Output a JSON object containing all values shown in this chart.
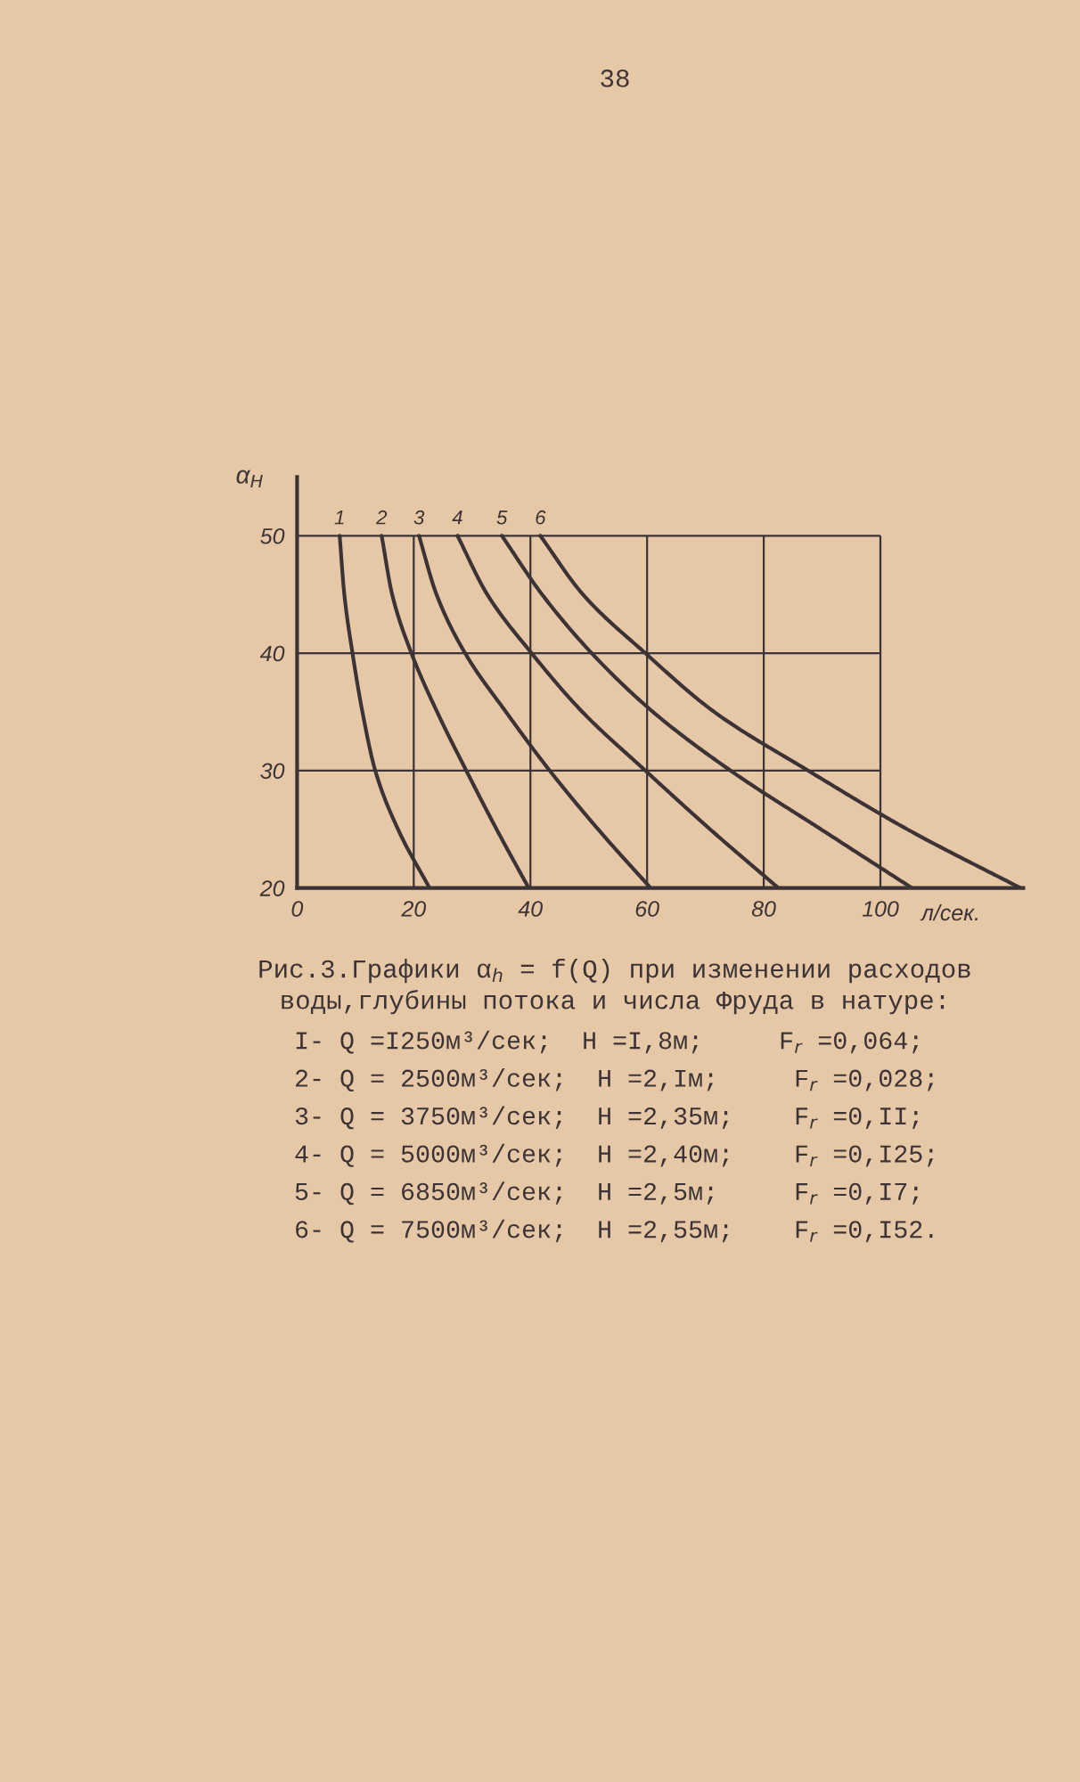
{
  "chart_data": {
    "type": "line",
    "title": "Рис.3.Графики α$_{h}$ = f(Q) при изменении расходов\nводы,глубины потока и числа Фруда в натуре:",
    "xlabel": "л/сек.",
    "ylabel": "α$_{H}$",
    "xlim": [
      0,
      124.5
    ],
    "ylim": [
      20,
      55
    ],
    "xticks": [
      0,
      20,
      40,
      60,
      80,
      100
    ],
    "yticks": [
      20,
      30,
      40,
      50
    ],
    "grid": true,
    "series": [
      {
        "name": "1",
        "color": "#3b3335",
        "x": [
          7.3,
          8.1,
          9.5,
          11.2,
          13.4,
          17.3,
          22.7
        ],
        "values": [
          50,
          45,
          40,
          35,
          30,
          25,
          20
        ]
      },
      {
        "name": "2",
        "color": "#3b3335",
        "x": [
          14.5,
          16.3,
          19.6,
          24.0,
          29.0,
          34.2,
          39.7
        ],
        "values": [
          50,
          45,
          40,
          35,
          30,
          25,
          20
        ]
      },
      {
        "name": "3",
        "color": "#3b3335",
        "x": [
          20.9,
          23.9,
          28.8,
          35.8,
          43.3,
          51.6,
          60.6
        ],
        "values": [
          50,
          45,
          40,
          35,
          30,
          25,
          20
        ]
      },
      {
        "name": "4",
        "color": "#3b3335",
        "x": [
          27.5,
          32.6,
          40.2,
          48.9,
          59.7,
          70.8,
          82.5
        ],
        "values": [
          50,
          45,
          40,
          35,
          30,
          25,
          20
        ]
      },
      {
        "name": "5",
        "color": "#3b3335",
        "x": [
          35.1,
          42.0,
          50.5,
          61.0,
          74.3,
          89.8,
          105.4
        ],
        "values": [
          50,
          45,
          40,
          35,
          30,
          25,
          20
        ]
      },
      {
        "name": "6",
        "color": "#3b3335",
        "x": [
          41.7,
          49.0,
          59.7,
          71.5,
          87.6,
          104.6,
          124.0
        ],
        "values": [
          50,
          45,
          40,
          35,
          30,
          25,
          20
        ]
      }
    ],
    "annotations": [
      "38",
      "I- Q =I250м³/сек;  H =I,8м;     F$_{r}$ =0,064;",
      "2- Q = 2500м³/сек;  H =2,Iм;     F$_{r}$ =0,028;",
      "3- Q = 3750м³/сек;  H =2,35м;    F$_{r}$ =0,II;",
      "4- Q = 5000м³/сек;  H =2,40м;    F$_{r}$ =0,I25;",
      "5- Q = 6850м³/сек;  H =2,5м;     F$_{r}$ =0,I7;",
      "6- Q = 7500м³/сек;  H =2,55м;    F$_{r}$ =0,I52."
    ]
  }
}
